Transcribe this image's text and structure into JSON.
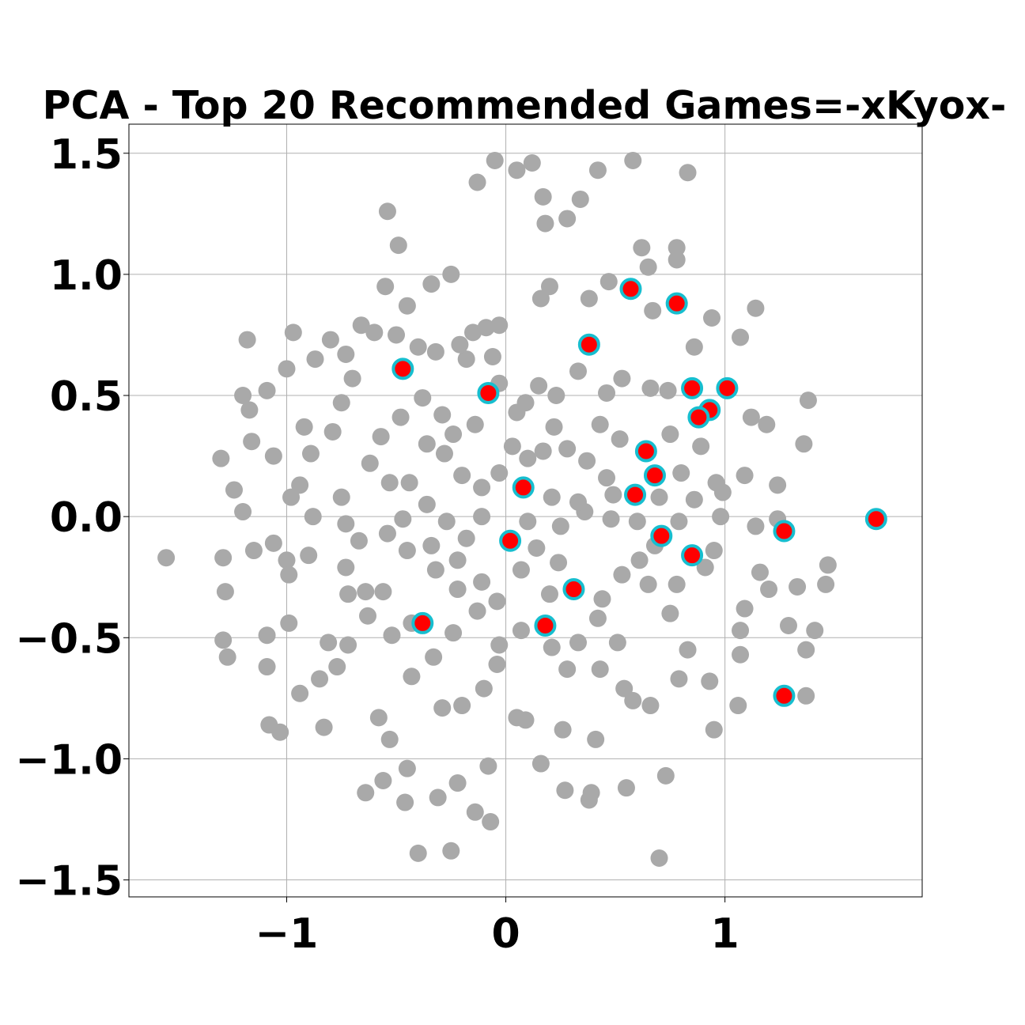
{
  "chart_data": {
    "type": "scatter",
    "title": "PCA - Top 20 Recommended Games=-xKyox-",
    "xlim": [
      -1.72,
      1.9
    ],
    "ylim": [
      -1.57,
      1.62
    ],
    "xticks": [
      {
        "value": -1,
        "label": "−1"
      },
      0,
      1
    ],
    "yticks": [
      {
        "value": -1.5,
        "label": "−1.5"
      },
      {
        "value": -1,
        "label": "−1.0"
      },
      {
        "value": -0.5,
        "label": "−0.5"
      },
      {
        "value": 0,
        "label": "0.0"
      },
      0.5,
      {
        "value": 1,
        "label": "1.0"
      },
      1.5
    ],
    "grid": true,
    "series": [
      {
        "color": "#a9a9a9",
        "x": [
          -1.55,
          -1.3,
          -1.24,
          -1.2,
          -1.18,
          -1.17,
          -1.16,
          -1.2,
          -1.15,
          -1.29,
          -1.28,
          -1.29,
          -1.27,
          -1.09,
          -1.09,
          -1.08,
          -1.03,
          -1.06,
          -1.06,
          -1.09,
          -1,
          -0.97,
          -1,
          -0.99,
          -0.99,
          -0.94,
          -0.9,
          -0.87,
          -0.8,
          -0.83,
          -0.85,
          -0.77,
          -0.81,
          -0.73,
          -0.72,
          -0.64,
          -0.56,
          -0.54,
          -0.49,
          -0.55,
          -0.45,
          -0.34,
          -0.25,
          -0.15,
          -0.05,
          -0.13,
          0.05,
          0.12,
          0.17,
          0.18,
          0.28,
          0.34,
          0.42,
          0.58,
          0.83,
          0.78,
          0.62,
          0.65,
          0.78,
          0.16,
          0.2,
          0.38,
          0.47,
          0.67,
          0.94,
          1.14,
          1.07,
          0.86,
          1.12,
          1.19,
          1.38,
          1.36,
          1.24,
          1.09,
          1.14,
          1.24,
          1.16,
          1.2,
          1.33,
          1.47,
          1.46,
          1.41,
          1.29,
          1.37,
          1.37,
          1.06,
          1.07,
          1.07,
          1.09,
          0.95,
          0.93,
          0.79,
          0.7,
          0.73,
          0.55,
          0.39,
          0.27,
          0.38,
          0.41,
          0.26,
          0.16,
          -0.07,
          -0.14,
          -0.25,
          -0.4,
          -0.31,
          -0.22,
          -0.45,
          -0.46,
          -0.53,
          -0.58,
          -0.08,
          0.05,
          0.09,
          0.58,
          0.66,
          0.54,
          0.43,
          0.51,
          0.75,
          0.83,
          0.91,
          0.95,
          0.98,
          0.96,
          0.99,
          0.86,
          0.8,
          0.75,
          0.74,
          0.66,
          0.53,
          0.46,
          0.33,
          0.23,
          0.15,
          0.09,
          -0.03,
          -0.06,
          -0.03,
          -0.09,
          -0.18,
          -0.21,
          -0.32,
          -0.4,
          -0.5,
          -0.6,
          -0.66,
          -0.7,
          -0.75,
          -0.79,
          -0.92,
          -0.89,
          -0.94,
          -0.98,
          -0.88,
          -0.75,
          -0.73,
          -0.67,
          -0.73,
          -0.72,
          -0.64,
          -0.63,
          -0.56,
          -0.52,
          -0.43,
          -0.32,
          -0.22,
          -0.13,
          -0.03,
          -0.04,
          -0.1,
          -0.2,
          -0.29,
          -0.43,
          -0.33,
          -0.24,
          0.07,
          0.21,
          0.28,
          0.33,
          0.42,
          0.44,
          0.24,
          0.14,
          0.1,
          0.25,
          0.36,
          0.48,
          0.49,
          0.37,
          0.28,
          0.17,
          0.1,
          -0.03,
          -0.11,
          -0.2,
          -0.28,
          -0.36,
          -0.44,
          -0.53,
          -0.62,
          -0.57,
          -0.48,
          -0.38,
          -0.29,
          -0.24,
          -0.14,
          0.03,
          0.05,
          0.22,
          0.43,
          0.52,
          0.46,
          0.33,
          0.21,
          -0.11,
          -0.18,
          -0.27,
          -0.36,
          -0.47,
          -0.54,
          -0.45,
          -0.34,
          -0.22,
          -0.11,
          -0.04,
          0.07,
          0.2,
          0.53,
          0.61,
          0.65,
          0.78,
          0.68,
          0.6,
          0.79,
          0.7,
          0.89
        ],
        "y": [
          -0.17,
          0.24,
          0.11,
          0.5,
          0.73,
          0.44,
          0.31,
          0.02,
          -0.14,
          -0.17,
          -0.31,
          -0.51,
          -0.58,
          -0.49,
          -0.62,
          -0.86,
          -0.89,
          -0.11,
          0.25,
          0.52,
          0.61,
          0.76,
          -0.18,
          -0.24,
          -0.44,
          -0.73,
          -0.16,
          0.65,
          0.73,
          -0.87,
          -0.67,
          -0.62,
          -0.52,
          0.67,
          -0.53,
          -1.14,
          -1.09,
          1.26,
          1.12,
          0.95,
          0.87,
          0.96,
          1,
          0.76,
          1.47,
          1.38,
          1.43,
          1.46,
          1.32,
          1.21,
          1.23,
          1.31,
          1.43,
          1.47,
          1.42,
          1.11,
          1.11,
          1.03,
          1.06,
          0.9,
          0.95,
          0.9,
          0.97,
          0.85,
          0.82,
          0.86,
          0.74,
          0.7,
          0.41,
          0.38,
          0.48,
          0.3,
          0.13,
          0.17,
          -0.04,
          -0.01,
          -0.23,
          -0.3,
          -0.29,
          -0.2,
          -0.28,
          -0.47,
          -0.45,
          -0.55,
          -0.74,
          -0.78,
          -0.47,
          -0.57,
          -0.38,
          -0.88,
          -0.68,
          -0.67,
          -1.41,
          -1.07,
          -1.12,
          -1.14,
          -1.13,
          -1.17,
          -0.92,
          -0.88,
          -1.02,
          -1.26,
          -1.22,
          -1.38,
          -1.39,
          -1.16,
          -1.1,
          -1.04,
          -1.18,
          -0.92,
          -0.83,
          -1.03,
          -0.83,
          -0.84,
          -0.76,
          -0.78,
          -0.71,
          -0.63,
          -0.52,
          -0.4,
          -0.55,
          -0.21,
          -0.14,
          0,
          0.14,
          0.1,
          0.07,
          0.18,
          0.34,
          0.52,
          0.53,
          0.57,
          0.51,
          0.6,
          0.5,
          0.54,
          0.47,
          0.55,
          0.66,
          0.79,
          0.78,
          0.65,
          0.71,
          0.68,
          0.7,
          0.75,
          0.76,
          0.79,
          0.57,
          0.47,
          0.35,
          0.37,
          0.26,
          0.13,
          0.08,
          0,
          0.08,
          -0.03,
          -0.1,
          -0.21,
          -0.32,
          -0.31,
          -0.41,
          -0.31,
          -0.49,
          -0.44,
          -0.22,
          -0.3,
          -0.39,
          -0.53,
          -0.61,
          -0.71,
          -0.78,
          -0.79,
          -0.66,
          -0.58,
          -0.48,
          -0.47,
          -0.54,
          -0.63,
          -0.52,
          -0.42,
          -0.34,
          -0.19,
          -0.13,
          -0.02,
          -0.04,
          0.02,
          -0.01,
          0.09,
          0.23,
          0.28,
          0.27,
          0.24,
          0.18,
          0.12,
          0.17,
          0.26,
          0.3,
          0.14,
          0.14,
          0.22,
          0.33,
          0.41,
          0.49,
          0.42,
          0.34,
          0.38,
          0.29,
          0.43,
          0.37,
          0.38,
          0.32,
          0.16,
          0.06,
          0.08,
          0,
          -0.09,
          -0.02,
          0.05,
          -0.01,
          -0.07,
          -0.14,
          -0.12,
          -0.18,
          -0.27,
          -0.35,
          -0.22,
          -0.32,
          -0.24,
          -0.18,
          -0.28,
          -0.28,
          -0.12,
          -0.02,
          -0.02,
          0.08,
          0.29
        ]
      },
      {
        "color": "#ff0000",
        "edgecolor": "#17becf",
        "x": [
          0.57,
          0.78,
          0.38,
          -0.47,
          -0.08,
          0.85,
          1.01,
          0.93,
          0.88,
          0.64,
          0.68,
          0.08,
          0.59,
          1.69,
          1.27,
          0.71,
          0.02,
          0.85,
          0.31,
          -0.38,
          0.18,
          1.27
        ],
        "y": [
          0.94,
          0.88,
          0.71,
          0.61,
          0.51,
          0.53,
          0.53,
          0.44,
          0.41,
          0.27,
          0.17,
          0.12,
          0.09,
          -0.01,
          -0.06,
          -0.08,
          -0.1,
          -0.16,
          -0.3,
          -0.44,
          -0.45,
          -0.74
        ]
      }
    ]
  }
}
